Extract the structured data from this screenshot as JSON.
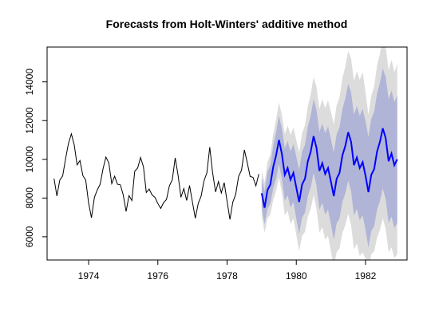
{
  "chart_data": {
    "type": "line",
    "title": "Forecasts from Holt-Winters' additive method",
    "xlabel": "",
    "ylabel": "",
    "xlim": [
      1972.8,
      1983.2
    ],
    "ylim": [
      4800,
      15800
    ],
    "xticks": [
      1974,
      1976,
      1978,
      1980,
      1982
    ],
    "yticks": [
      6000,
      8000,
      10000,
      12000,
      14000
    ],
    "grid": false,
    "legend": "none",
    "colors": {
      "observed": "#000000",
      "forecast": "#0000ff",
      "band80": "#b0b4d6",
      "band95": "#dcdcdc"
    },
    "series": [
      {
        "role": "observed",
        "x": [
          1973.0,
          1973.083,
          1973.167,
          1973.25,
          1973.333,
          1973.417,
          1973.5,
          1973.583,
          1973.667,
          1973.75,
          1973.833,
          1973.917,
          1974.0,
          1974.083,
          1974.167,
          1974.25,
          1974.333,
          1974.417,
          1974.5,
          1974.583,
          1974.667,
          1974.75,
          1974.833,
          1974.917,
          1975.0,
          1975.083,
          1975.167,
          1975.25,
          1975.333,
          1975.417,
          1975.5,
          1975.583,
          1975.667,
          1975.75,
          1975.833,
          1975.917,
          1976.0,
          1976.083,
          1976.167,
          1976.25,
          1976.333,
          1976.417,
          1976.5,
          1976.583,
          1976.667,
          1976.75,
          1976.833,
          1976.917,
          1977.0,
          1977.083,
          1977.167,
          1977.25,
          1977.333,
          1977.417,
          1977.5,
          1977.583,
          1977.667,
          1977.75,
          1977.833,
          1977.917,
          1978.0,
          1978.083,
          1978.167,
          1978.25,
          1978.333,
          1978.417,
          1978.5,
          1978.583,
          1978.667,
          1978.75,
          1978.833,
          1978.917
        ],
        "y": [
          9007,
          8106,
          8928,
          9137,
          10017,
          10826,
          11317,
          10744,
          9713,
          9938,
          9161,
          8927,
          7750,
          6981,
          8038,
          8422,
          8714,
          9512,
          10120,
          9823,
          8743,
          9129,
          8710,
          8680,
          8162,
          7306,
          8124,
          7870,
          9387,
          9556,
          10093,
          9620,
          8285,
          8466,
          8160,
          8034,
          7717,
          7461,
          7767,
          7925,
          8623,
          8945,
          10078,
          9179,
          8037,
          8488,
          7874,
          8647,
          7792,
          6957,
          7726,
          8106,
          8890,
          9299,
          10625,
          9302,
          8314,
          8850,
          8265,
          8796,
          7836,
          6892,
          7791,
          8192,
          9115,
          9434,
          10484,
          9827,
          9110,
          9070,
          8633,
          9240
        ]
      },
      {
        "role": "forecast",
        "x": [
          1979.0,
          1979.083,
          1979.167,
          1979.25,
          1979.333,
          1979.417,
          1979.5,
          1979.583,
          1979.667,
          1979.75,
          1979.833,
          1979.917,
          1980.0,
          1980.083,
          1980.167,
          1980.25,
          1980.333,
          1980.417,
          1980.5,
          1980.583,
          1980.667,
          1980.75,
          1980.833,
          1980.917,
          1981.0,
          1981.083,
          1981.167,
          1981.25,
          1981.333,
          1981.417,
          1981.5,
          1981.583,
          1981.667,
          1981.75,
          1981.833,
          1981.917,
          1982.0,
          1982.083,
          1982.167,
          1982.25,
          1982.333,
          1982.417,
          1982.5,
          1982.583,
          1982.667,
          1982.75,
          1982.833,
          1982.917
        ],
        "y": [
          8250,
          7500,
          8400,
          8700,
          9600,
          10200,
          11000,
          10300,
          9200,
          9550,
          8950,
          9300,
          8550,
          7800,
          8700,
          9000,
          9900,
          10400,
          11200,
          10600,
          9400,
          9800,
          9250,
          9550,
          8850,
          8100,
          9000,
          9300,
          10200,
          10700,
          11400,
          10900,
          9700,
          10100,
          9550,
          9850,
          9150,
          8300,
          9200,
          9500,
          10400,
          10900,
          11600,
          11100,
          9900,
          10300,
          9700,
          10000
        ],
        "lo80": [
          7500,
          6650,
          7450,
          7700,
          8500,
          9000,
          9750,
          9000,
          7850,
          8150,
          7500,
          7800,
          6950,
          6150,
          7000,
          7250,
          8100,
          8550,
          9300,
          8650,
          7400,
          7750,
          7150,
          7400,
          6650,
          5850,
          6700,
          6950,
          7800,
          8250,
          8900,
          8350,
          7100,
          7450,
          6850,
          7100,
          6350,
          5450,
          6300,
          6550,
          7400,
          7850,
          8500,
          7950,
          6700,
          7050,
          6450,
          6700
        ],
        "hi80": [
          9000,
          8350,
          9350,
          9700,
          10700,
          11400,
          12250,
          11600,
          10550,
          10950,
          10400,
          10800,
          10150,
          9450,
          10400,
          10750,
          11700,
          12250,
          13100,
          12550,
          11400,
          11850,
          11350,
          11700,
          11050,
          10350,
          11300,
          11650,
          12600,
          13150,
          13900,
          13450,
          12300,
          12750,
          12250,
          12600,
          11950,
          11150,
          12100,
          12450,
          13400,
          13950,
          14700,
          14250,
          13100,
          13550,
          12950,
          13300
        ],
        "lo95": [
          7100,
          6200,
          6950,
          7150,
          7900,
          8350,
          9050,
          8300,
          7100,
          7350,
          6650,
          6950,
          6100,
          5250,
          6050,
          6250,
          7050,
          7450,
          8150,
          7450,
          6200,
          6500,
          5850,
          6050,
          5250,
          4400,
          5200,
          5400,
          6200,
          6600,
          7200,
          6600,
          5350,
          5650,
          5000,
          5200,
          4850,
          4300,
          5100,
          5250,
          5950,
          6350,
          6950,
          6400,
          5200,
          5450,
          4900,
          5100
        ],
        "hi95": [
          9400,
          8800,
          9850,
          10250,
          11300,
          12050,
          12950,
          12300,
          11300,
          11750,
          11250,
          11650,
          11000,
          10350,
          11350,
          11750,
          12750,
          13350,
          14250,
          13750,
          12600,
          13100,
          12650,
          13050,
          12450,
          11800,
          12800,
          13200,
          14200,
          14800,
          15600,
          15200,
          14050,
          14550,
          14100,
          14500,
          13450,
          12300,
          13300,
          13750,
          14850,
          15450,
          16250,
          15800,
          14600,
          15150,
          14500,
          14900
        ]
      }
    ]
  }
}
